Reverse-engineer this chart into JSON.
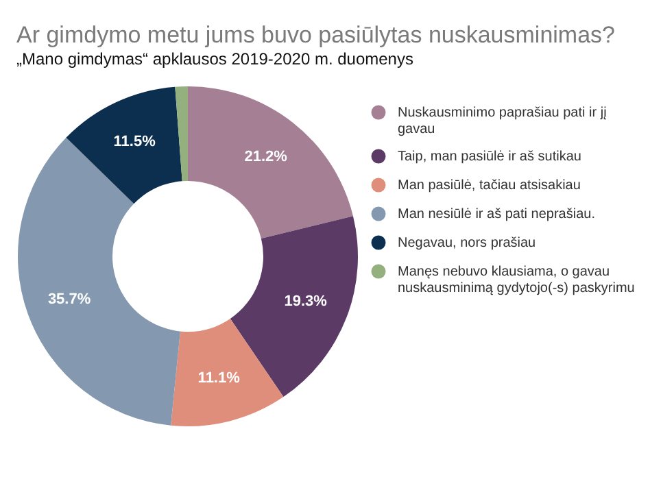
{
  "chart_data": {
    "type": "donut",
    "title": "Ar gimdymo metu jums buvo pasiūlytas nuskausminimas?",
    "subtitle": "„Mano gimdymas“ apklausos 2019-2020 m. duomenys",
    "categories": [
      "Nuskausminimo paprašiau pati ir jį gavau",
      "Taip, man pasiūlė ir aš sutikau",
      "Man pasiūlė, tačiau atsisakiau",
      "Man nesiūlė ir aš pati neprašiau.",
      "Negavau, nors prašiau",
      "Manęs nebuvo klausiama, o gavau nuskausminimą gydytojo(-s) paskyrimu"
    ],
    "values": [
      21.2,
      19.3,
      11.1,
      35.7,
      11.5,
      1.2
    ],
    "value_labels": [
      "21.2%",
      "19.3%",
      "11.1%",
      "35.7%",
      "11.5%",
      null
    ],
    "colors": [
      "#a57f94",
      "#5b3a66",
      "#e08e7c",
      "#8499b0",
      "#0d2f4f",
      "#94b07f"
    ],
    "legend": "right"
  }
}
